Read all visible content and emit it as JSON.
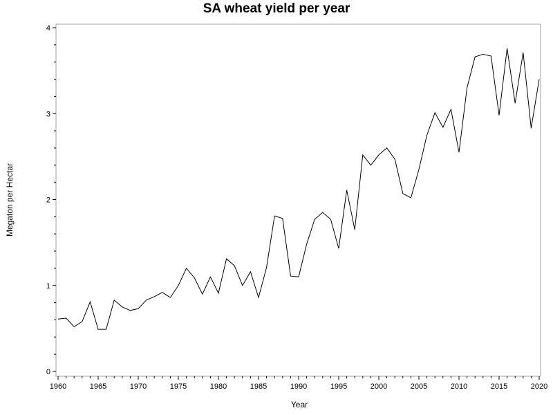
{
  "chart_data": {
    "type": "line",
    "title": "SA wheat yield per year",
    "xlabel": "Year",
    "ylabel": "Megaton per Hectar",
    "xlim": [
      1960,
      2020
    ],
    "ylim": [
      0,
      4
    ],
    "x_ticks": [
      1960,
      1965,
      1970,
      1975,
      1980,
      1985,
      1990,
      1995,
      2000,
      2005,
      2010,
      2015,
      2020
    ],
    "y_ticks": [
      0,
      1,
      2,
      3,
      4
    ],
    "grid": false,
    "line_color": "#000000",
    "series": [
      {
        "x": [
          1960,
          1961,
          1962,
          1963,
          1964,
          1965,
          1966,
          1967,
          1968,
          1969,
          1970,
          1971,
          1972,
          1973,
          1974,
          1975,
          1976,
          1977,
          1978,
          1979,
          1980,
          1981,
          1982,
          1983,
          1984,
          1985,
          1986,
          1987,
          1988,
          1989,
          1990,
          1991,
          1992,
          1993,
          1994,
          1995,
          1996,
          1997,
          1998,
          1999,
          2000,
          2001,
          2002,
          2003,
          2004,
          2005,
          2006,
          2007,
          2008,
          2009,
          2010,
          2011,
          2012,
          2013,
          2014,
          2015,
          2016,
          2017,
          2018,
          2019,
          2020
        ],
        "values": [
          0.61,
          0.62,
          0.52,
          0.58,
          0.81,
          0.49,
          0.49,
          0.83,
          0.75,
          0.71,
          0.73,
          0.83,
          0.87,
          0.92,
          0.86,
          1.0,
          1.2,
          1.09,
          0.9,
          1.1,
          0.91,
          1.31,
          1.23,
          1.0,
          1.16,
          0.86,
          1.21,
          1.81,
          1.78,
          1.11,
          1.1,
          1.48,
          1.77,
          1.85,
          1.77,
          1.43,
          2.11,
          1.65,
          2.52,
          2.4,
          2.52,
          2.6,
          2.47,
          2.07,
          2.02,
          2.35,
          2.75,
          3.01,
          2.84,
          3.05,
          2.55,
          3.3,
          3.66,
          3.69,
          3.67,
          2.98,
          3.76,
          3.12,
          3.71,
          2.83,
          3.4
        ]
      }
    ]
  }
}
